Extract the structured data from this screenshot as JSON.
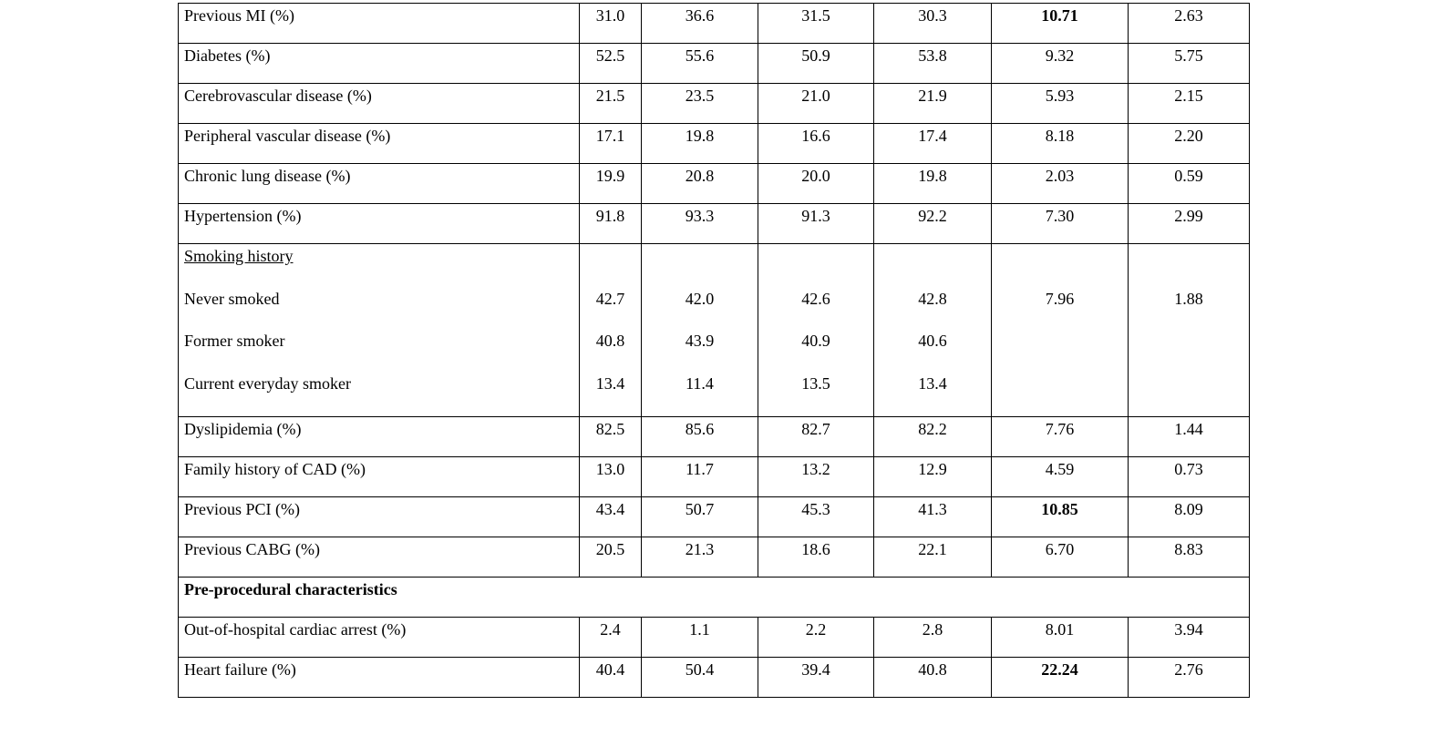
{
  "table": {
    "rows": [
      {
        "label": "Previous MI (%)",
        "values": [
          "31.0",
          "36.6",
          "31.5",
          "30.3",
          "10.71",
          "2.63"
        ],
        "bold": [
          4
        ]
      },
      {
        "label": "Diabetes (%)",
        "values": [
          "52.5",
          "55.6",
          "50.9",
          "53.8",
          "9.32",
          "5.75"
        ],
        "bold": []
      },
      {
        "label": "Cerebrovascular disease (%)",
        "values": [
          "21.5",
          "23.5",
          "21.0",
          "21.9",
          "5.93",
          "2.15"
        ],
        "bold": []
      },
      {
        "label": "Peripheral vascular disease (%)",
        "values": [
          "17.1",
          "19.8",
          "16.6",
          "17.4",
          "8.18",
          "2.20"
        ],
        "bold": []
      },
      {
        "label": "Chronic lung disease (%)",
        "values": [
          "19.9",
          "20.8",
          "20.0",
          "19.8",
          "2.03",
          "0.59"
        ],
        "bold": []
      },
      {
        "label": "Hypertension (%)",
        "values": [
          "91.8",
          "93.3",
          "91.3",
          "92.2",
          "7.30",
          "2.99"
        ],
        "bold": []
      },
      {
        "group": "Smoking history",
        "sublabels": [
          "Never smoked",
          "Former smoker",
          "Current everyday smoker"
        ],
        "subvalues": [
          [
            "42.7",
            "40.8",
            "13.4"
          ],
          [
            "42.0",
            "43.9",
            "11.4"
          ],
          [
            "42.6",
            "40.9",
            "13.5"
          ],
          [
            "42.8",
            "40.6",
            "13.4"
          ],
          [
            "7.96"
          ],
          [
            "1.88"
          ]
        ]
      },
      {
        "label": "Dyslipidemia (%)",
        "values": [
          "82.5",
          "85.6",
          "82.7",
          "82.2",
          "7.76",
          "1.44"
        ],
        "bold": []
      },
      {
        "label": "Family history of CAD (%)",
        "values": [
          "13.0",
          "11.7",
          "13.2",
          "12.9",
          "4.59",
          "0.73"
        ],
        "bold": []
      },
      {
        "label": "Previous PCI (%)",
        "values": [
          "43.4",
          "50.7",
          "45.3",
          "41.3",
          "10.85",
          "8.09"
        ],
        "bold": [
          4
        ]
      },
      {
        "label": "Previous CABG (%)",
        "values": [
          "20.5",
          "21.3",
          "18.6",
          "22.1",
          "6.70",
          "8.83"
        ],
        "bold": []
      },
      {
        "section": "Pre-procedural characteristics"
      },
      {
        "label": "Out-of-hospital cardiac arrest (%)",
        "values": [
          "2.4",
          "1.1",
          "2.2",
          "2.8",
          "8.01",
          "3.94"
        ],
        "bold": []
      },
      {
        "label": "Heart failure (%)",
        "values": [
          "40.4",
          "50.4",
          "39.4",
          "40.8",
          "22.24",
          "2.76"
        ],
        "bold": [
          4
        ]
      }
    ]
  }
}
